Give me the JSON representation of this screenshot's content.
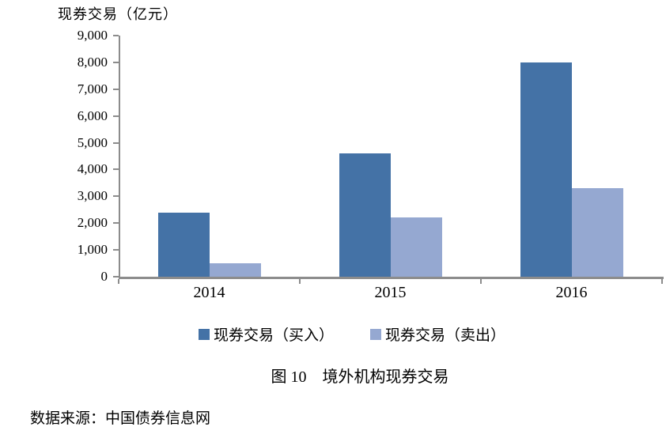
{
  "figure": {
    "caption": "图 10　境外机构现券交易",
    "source": "数据来源：中国债券信息网"
  },
  "chart_data": {
    "type": "bar",
    "title": "现券交易（亿元）",
    "ylabel": "现券交易（亿元）",
    "xlabel": "",
    "categories": [
      "2014",
      "2015",
      "2016"
    ],
    "series": [
      {
        "key": "buy",
        "name": "现券交易（买入）",
        "color": "#4472A6",
        "values": [
          2400,
          4600,
          8000
        ]
      },
      {
        "key": "sell",
        "name": "现券交易（卖出）",
        "color": "#95A8D1",
        "values": [
          500,
          2200,
          3300
        ]
      }
    ],
    "ylim": [
      0,
      9000
    ],
    "ytick_step": 1000,
    "ytick_labels_top_to_bottom": [
      "9,000",
      "8,000",
      "7,000",
      "6,000",
      "5,000",
      "4,000",
      "3,000",
      "2,000",
      "1,000",
      "0"
    ],
    "grid": false,
    "legend_position": "bottom",
    "axis_color": "#8C8C8C"
  }
}
